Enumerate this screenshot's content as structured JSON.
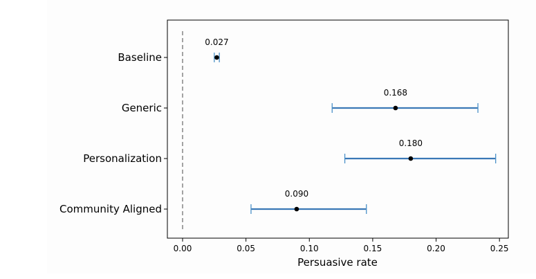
{
  "chart_data": {
    "type": "scatter",
    "title": "",
    "xlabel": "Persuasive rate",
    "ylabel": "",
    "xlim": [
      -0.012,
      0.257
    ],
    "xticks": [
      "0.00",
      "0.05",
      "0.10",
      "0.15",
      "0.20",
      "0.25"
    ],
    "xtick_values": [
      0,
      0.05,
      0.1,
      0.15,
      0.2,
      0.25
    ],
    "categories": [
      "Baseline",
      "Generic",
      "Personalization",
      "Community Aligned"
    ],
    "values": [
      0.027,
      0.168,
      0.18,
      0.09
    ],
    "value_labels": [
      "0.027",
      "0.168",
      "0.180",
      "0.090"
    ],
    "ci_low": [
      0.025,
      0.118,
      0.128,
      0.054
    ],
    "ci_high": [
      0.029,
      0.233,
      0.247,
      0.145
    ],
    "reference_line_x": 0,
    "grid": false,
    "colors": {
      "errorbar": "#3a78b6",
      "cap": "#4a90c8",
      "point": "#000000",
      "reference": "#999999"
    }
  }
}
